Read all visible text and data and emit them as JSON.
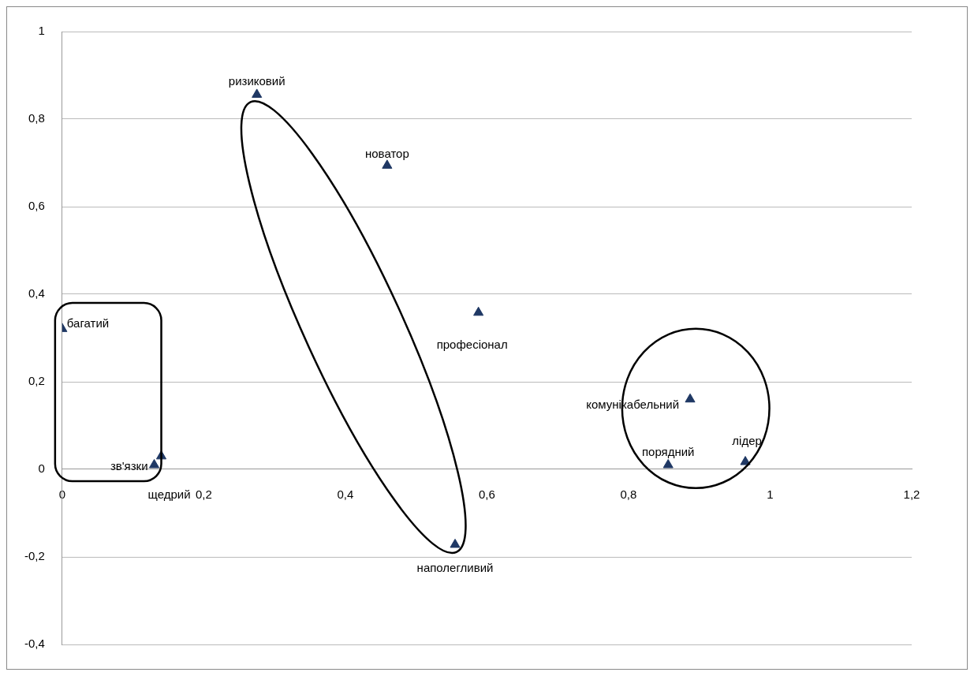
{
  "chart_data": {
    "type": "scatter",
    "marker": "triangle",
    "grid": "y",
    "x": [
      0.275,
      0.459,
      0.588,
      0,
      0.13,
      0.14,
      0.555,
      0.887,
      0.856,
      0.965
    ],
    "values": [
      0.856,
      0.694,
      0.358,
      0.321,
      0.01,
      0.03,
      -0.172,
      0.16,
      0.01,
      0.017
    ],
    "color": "#1f3864",
    "xlim": [
      0,
      1.2
    ],
    "xticks": [
      0,
      {
        "value": 0.2,
        "label": "0,2"
      },
      {
        "value": 0.4,
        "label": "0,4"
      },
      {
        "value": 0.6,
        "label": "0,6"
      },
      {
        "value": 0.8,
        "label": "0,8"
      },
      1,
      {
        "value": 1.2,
        "label": "1,2"
      }
    ],
    "ylim": [
      -0.4,
      1
    ],
    "yticks": [
      {
        "value": -0.4,
        "label": "-0,4"
      },
      {
        "value": -0.2,
        "label": "-0,2"
      },
      0,
      {
        "value": 0.2,
        "label": "0,2"
      },
      {
        "value": 0.4,
        "label": "0,4"
      },
      {
        "value": 0.6,
        "label": "0,6"
      },
      {
        "value": 0.8,
        "label": "0,8"
      },
      1
    ],
    "annotations": [
      {
        "text": "ризиковий",
        "x": 0.275,
        "y": 0.856
      },
      {
        "text": "новатор",
        "x": 0.459,
        "y": 0.694
      },
      {
        "text": "професіонал",
        "x": 0.588,
        "y": 0.358
      },
      {
        "text": "багатий",
        "x": 0,
        "y": 0.321
      },
      {
        "text": "зв'язки",
        "x": 0.13,
        "y": 0.01
      },
      {
        "text": "щедрий",
        "x": 0.14,
        "y": 0.03
      },
      {
        "text": "наполегливий",
        "x": 0.555,
        "y": -0.172
      },
      {
        "text": "комунікабельний",
        "x": 0.887,
        "y": 0.16
      },
      {
        "text": "порядний",
        "x": 0.856,
        "y": 0.01
      },
      {
        "text": "лідер",
        "x": 0.965,
        "y": 0.017
      }
    ]
  }
}
